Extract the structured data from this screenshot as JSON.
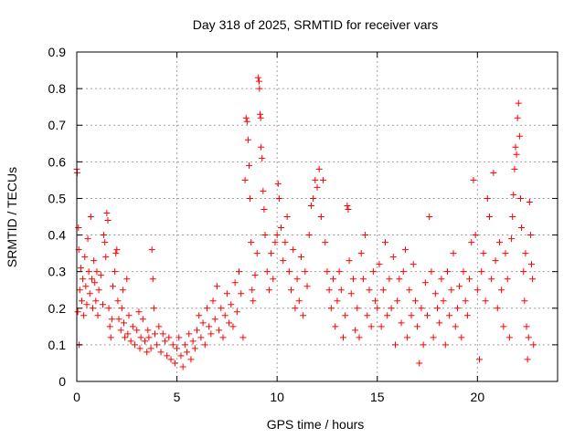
{
  "chart_data": {
    "type": "scatter",
    "title": "Day 318 of 2025, SRMTID for receiver vars",
    "xlabel": "GPS time / hours",
    "ylabel": "SRMTID / TECUs",
    "xlim": [
      0,
      24
    ],
    "ylim": [
      0,
      0.9
    ],
    "xticks": [
      0,
      5,
      10,
      15,
      20
    ],
    "yticks": [
      0,
      0.1,
      0.2,
      0.3,
      0.4,
      0.5,
      0.6,
      0.7,
      0.8,
      0.9
    ],
    "grid": true,
    "marker": "+",
    "color": "#ff0000",
    "series": [
      {
        "name": "SRMTID",
        "points": [
          [
            0.0,
            0.58
          ],
          [
            0.02,
            0.57
          ],
          [
            0.05,
            0.19
          ],
          [
            0.08,
            0.42
          ],
          [
            0.1,
            0.36
          ],
          [
            0.12,
            0.1
          ],
          [
            0.15,
            0.25
          ],
          [
            0.2,
            0.31
          ],
          [
            0.25,
            0.22
          ],
          [
            0.3,
            0.28
          ],
          [
            0.35,
            0.18
          ],
          [
            0.4,
            0.34
          ],
          [
            0.45,
            0.26
          ],
          [
            0.5,
            0.21
          ],
          [
            0.55,
            0.39
          ],
          [
            0.6,
            0.3
          ],
          [
            0.65,
            0.24
          ],
          [
            0.7,
            0.45
          ],
          [
            0.75,
            0.28
          ],
          [
            0.8,
            0.2
          ],
          [
            0.85,
            0.33
          ],
          [
            0.9,
            0.27
          ],
          [
            0.95,
            0.22
          ],
          [
            1.0,
            0.3
          ],
          [
            1.05,
            0.18
          ],
          [
            1.1,
            0.25
          ],
          [
            1.2,
            0.29
          ],
          [
            1.3,
            0.21
          ],
          [
            1.35,
            0.4
          ],
          [
            1.4,
            0.38
          ],
          [
            1.45,
            0.34
          ],
          [
            1.5,
            0.46
          ],
          [
            1.55,
            0.44
          ],
          [
            1.6,
            0.2
          ],
          [
            1.65,
            0.15
          ],
          [
            1.7,
            0.12
          ],
          [
            1.75,
            0.17
          ],
          [
            1.8,
            0.26
          ],
          [
            1.9,
            0.3
          ],
          [
            1.95,
            0.35
          ],
          [
            2.0,
            0.36
          ],
          [
            2.05,
            0.22
          ],
          [
            2.1,
            0.17
          ],
          [
            2.2,
            0.14
          ],
          [
            2.25,
            0.2
          ],
          [
            2.3,
            0.25
          ],
          [
            2.35,
            0.16
          ],
          [
            2.4,
            0.12
          ],
          [
            2.5,
            0.28
          ],
          [
            2.55,
            0.13
          ],
          [
            2.6,
            0.18
          ],
          [
            2.7,
            0.11
          ],
          [
            2.8,
            0.15
          ],
          [
            2.9,
            0.1
          ],
          [
            3.0,
            0.14
          ],
          [
            3.1,
            0.19
          ],
          [
            3.15,
            0.09
          ],
          [
            3.2,
            0.12
          ],
          [
            3.3,
            0.17
          ],
          [
            3.4,
            0.11
          ],
          [
            3.5,
            0.08
          ],
          [
            3.55,
            0.14
          ],
          [
            3.6,
            0.12
          ],
          [
            3.7,
            0.09
          ],
          [
            3.75,
            0.36
          ],
          [
            3.8,
            0.28
          ],
          [
            3.85,
            0.2
          ],
          [
            3.9,
            0.13
          ],
          [
            4.0,
            0.1
          ],
          [
            4.1,
            0.15
          ],
          [
            4.2,
            0.08
          ],
          [
            4.3,
            0.13
          ],
          [
            4.4,
            0.11
          ],
          [
            4.5,
            0.07
          ],
          [
            4.6,
            0.12
          ],
          [
            4.7,
            0.06
          ],
          [
            4.8,
            0.1
          ],
          [
            4.9,
            0.05
          ],
          [
            5.0,
            0.09
          ],
          [
            5.1,
            0.12
          ],
          [
            5.2,
            0.07
          ],
          [
            5.3,
            0.04
          ],
          [
            5.4,
            0.1
          ],
          [
            5.5,
            0.08
          ],
          [
            5.6,
            0.13
          ],
          [
            5.7,
            0.06
          ],
          [
            5.8,
            0.11
          ],
          [
            5.9,
            0.09
          ],
          [
            6.0,
            0.14
          ],
          [
            6.1,
            0.18
          ],
          [
            6.2,
            0.12
          ],
          [
            6.3,
            0.16
          ],
          [
            6.4,
            0.1
          ],
          [
            6.5,
            0.2
          ],
          [
            6.6,
            0.15
          ],
          [
            6.7,
            0.13
          ],
          [
            6.8,
            0.22
          ],
          [
            6.9,
            0.17
          ],
          [
            7.0,
            0.26
          ],
          [
            7.1,
            0.14
          ],
          [
            7.2,
            0.2
          ],
          [
            7.3,
            0.12
          ],
          [
            7.4,
            0.18
          ],
          [
            7.5,
            0.24
          ],
          [
            7.6,
            0.16
          ],
          [
            7.7,
            0.21
          ],
          [
            7.8,
            0.15
          ],
          [
            7.9,
            0.27
          ],
          [
            8.0,
            0.19
          ],
          [
            8.1,
            0.3
          ],
          [
            8.2,
            0.24
          ],
          [
            8.3,
            0.12
          ],
          [
            8.4,
            0.55
          ],
          [
            8.45,
            0.72
          ],
          [
            8.5,
            0.71
          ],
          [
            8.55,
            0.66
          ],
          [
            8.6,
            0.59
          ],
          [
            8.65,
            0.5
          ],
          [
            8.7,
            0.38
          ],
          [
            8.75,
            0.25
          ],
          [
            8.8,
            0.22
          ],
          [
            8.9,
            0.29
          ],
          [
            9.0,
            0.35
          ],
          [
            9.05,
            0.83
          ],
          [
            9.1,
            0.82
          ],
          [
            9.12,
            0.8
          ],
          [
            9.15,
            0.73
          ],
          [
            9.18,
            0.72
          ],
          [
            9.2,
            0.64
          ],
          [
            9.25,
            0.61
          ],
          [
            9.3,
            0.52
          ],
          [
            9.35,
            0.47
          ],
          [
            9.4,
            0.4
          ],
          [
            9.5,
            0.3
          ],
          [
            9.6,
            0.25
          ],
          [
            9.7,
            0.35
          ],
          [
            9.8,
            0.28
          ],
          [
            9.9,
            0.38
          ],
          [
            10.0,
            0.4
          ],
          [
            10.05,
            0.54
          ],
          [
            10.1,
            0.5
          ],
          [
            10.2,
            0.42
          ],
          [
            10.3,
            0.33
          ],
          [
            10.4,
            0.38
          ],
          [
            10.5,
            0.45
          ],
          [
            10.6,
            0.3
          ],
          [
            10.7,
            0.25
          ],
          [
            10.8,
            0.36
          ],
          [
            10.9,
            0.2
          ],
          [
            11.0,
            0.28
          ],
          [
            11.1,
            0.22
          ],
          [
            11.2,
            0.34
          ],
          [
            11.3,
            0.18
          ],
          [
            11.4,
            0.3
          ],
          [
            11.5,
            0.26
          ],
          [
            11.6,
            0.4
          ],
          [
            11.7,
            0.48
          ],
          [
            11.8,
            0.5
          ],
          [
            11.9,
            0.55
          ],
          [
            12.0,
            0.53
          ],
          [
            12.1,
            0.58
          ],
          [
            12.2,
            0.45
          ],
          [
            12.3,
            0.55
          ],
          [
            12.4,
            0.38
          ],
          [
            12.5,
            0.3
          ],
          [
            12.6,
            0.25
          ],
          [
            12.7,
            0.2
          ],
          [
            12.8,
            0.28
          ],
          [
            12.9,
            0.15
          ],
          [
            13.0,
            0.22
          ],
          [
            13.1,
            0.3
          ],
          [
            13.2,
            0.25
          ],
          [
            13.3,
            0.12
          ],
          [
            13.4,
            0.18
          ],
          [
            13.5,
            0.48
          ],
          [
            13.55,
            0.47
          ],
          [
            13.6,
            0.33
          ],
          [
            13.7,
            0.24
          ],
          [
            13.8,
            0.28
          ],
          [
            13.9,
            0.14
          ],
          [
            14.0,
            0.2
          ],
          [
            14.1,
            0.12
          ],
          [
            14.2,
            0.35
          ],
          [
            14.3,
            0.28
          ],
          [
            14.4,
            0.4
          ],
          [
            14.5,
            0.18
          ],
          [
            14.6,
            0.25
          ],
          [
            14.7,
            0.15
          ],
          [
            14.8,
            0.3
          ],
          [
            14.9,
            0.22
          ],
          [
            15.0,
            0.2
          ],
          [
            15.1,
            0.32
          ],
          [
            15.2,
            0.15
          ],
          [
            15.3,
            0.25
          ],
          [
            15.4,
            0.38
          ],
          [
            15.5,
            0.18
          ],
          [
            15.6,
            0.28
          ],
          [
            15.7,
            0.2
          ],
          [
            15.8,
            0.34
          ],
          [
            15.9,
            0.1
          ],
          [
            16.0,
            0.22
          ],
          [
            16.1,
            0.28
          ],
          [
            16.2,
            0.16
          ],
          [
            16.3,
            0.3
          ],
          [
            16.4,
            0.36
          ],
          [
            16.5,
            0.12
          ],
          [
            16.6,
            0.25
          ],
          [
            16.7,
            0.18
          ],
          [
            16.8,
            0.32
          ],
          [
            16.9,
            0.22
          ],
          [
            17.0,
            0.15
          ],
          [
            17.1,
            0.05
          ],
          [
            17.2,
            0.2
          ],
          [
            17.3,
            0.1
          ],
          [
            17.4,
            0.27
          ],
          [
            17.5,
            0.18
          ],
          [
            17.6,
            0.45
          ],
          [
            17.7,
            0.3
          ],
          [
            17.8,
            0.12
          ],
          [
            17.9,
            0.24
          ],
          [
            18.0,
            0.2
          ],
          [
            18.1,
            0.16
          ],
          [
            18.2,
            0.28
          ],
          [
            18.3,
            0.22
          ],
          [
            18.4,
            0.1
          ],
          [
            18.5,
            0.3
          ],
          [
            18.6,
            0.18
          ],
          [
            18.7,
            0.25
          ],
          [
            18.8,
            0.35
          ],
          [
            18.9,
            0.15
          ],
          [
            19.0,
            0.2
          ],
          [
            19.1,
            0.26
          ],
          [
            19.2,
            0.12
          ],
          [
            19.3,
            0.3
          ],
          [
            19.4,
            0.22
          ],
          [
            19.5,
            0.18
          ],
          [
            19.6,
            0.28
          ],
          [
            19.7,
            0.38
          ],
          [
            19.8,
            0.55
          ],
          [
            19.9,
            0.4
          ],
          [
            20.0,
            0.25
          ],
          [
            20.1,
            0.06
          ],
          [
            20.2,
            0.3
          ],
          [
            20.3,
            0.35
          ],
          [
            20.4,
            0.22
          ],
          [
            20.5,
            0.5
          ],
          [
            20.6,
            0.45
          ],
          [
            20.7,
            0.28
          ],
          [
            20.8,
            0.57
          ],
          [
            20.9,
            0.33
          ],
          [
            21.0,
            0.2
          ],
          [
            21.1,
            0.38
          ],
          [
            21.2,
            0.25
          ],
          [
            21.3,
            0.15
          ],
          [
            21.4,
            0.35
          ],
          [
            21.5,
            0.28
          ],
          [
            21.6,
            0.12
          ],
          [
            21.7,
            0.39
          ],
          [
            21.75,
            0.45
          ],
          [
            21.8,
            0.51
          ],
          [
            21.85,
            0.58
          ],
          [
            21.9,
            0.64
          ],
          [
            21.95,
            0.62
          ],
          [
            22.0,
            0.72
          ],
          [
            22.05,
            0.76
          ],
          [
            22.1,
            0.67
          ],
          [
            22.15,
            0.5
          ],
          [
            22.2,
            0.42
          ],
          [
            22.3,
            0.3
          ],
          [
            22.35,
            0.22
          ],
          [
            22.4,
            0.35
          ],
          [
            22.45,
            0.15
          ],
          [
            22.5,
            0.06
          ],
          [
            22.55,
            0.12
          ],
          [
            22.6,
            0.49
          ],
          [
            22.65,
            0.4
          ],
          [
            22.7,
            0.32
          ],
          [
            22.75,
            0.28
          ],
          [
            22.8,
            0.1
          ]
        ]
      }
    ]
  }
}
